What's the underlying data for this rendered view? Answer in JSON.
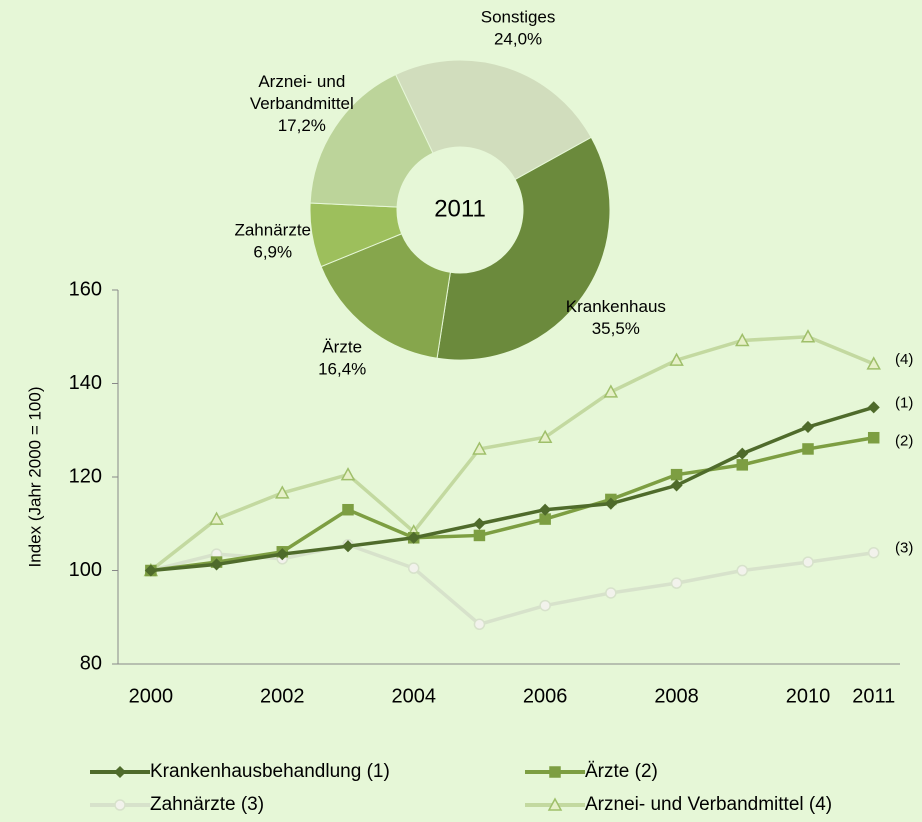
{
  "chart_data": [
    {
      "type": "line",
      "y_label": "Index (Jahr 2000 = 100)",
      "x": [
        2000,
        2001,
        2002,
        2003,
        2004,
        2005,
        2006,
        2007,
        2008,
        2009,
        2010,
        2011
      ],
      "xlim": [
        1999.5,
        2011.4
      ],
      "xticks": [
        2000,
        2002,
        2004,
        2006,
        2008,
        2010,
        2011
      ],
      "ylim": [
        80,
        160
      ],
      "yticks": [
        80,
        100,
        120,
        140,
        160
      ],
      "series": [
        {
          "name": "Krankenhausbehandlung (1)",
          "label": "(1)",
          "color": "#4f6b2b",
          "marker": "diamond",
          "values": [
            100,
            101.3,
            103.5,
            105.2,
            107,
            110,
            113,
            114.3,
            118.2,
            125,
            130.7,
            134.9
          ]
        },
        {
          "name": "Ärzte (2)",
          "label": "(2)",
          "color": "#7d9e42",
          "marker": "square",
          "values": [
            100,
            101.8,
            104,
            113,
            107,
            107.5,
            111,
            115.2,
            120.5,
            122.6,
            126,
            128.4
          ]
        },
        {
          "name": "Zahnärzte (3)",
          "label": "(3)",
          "color": "#d7e2cb",
          "marker": "circle",
          "values": [
            100,
            103.5,
            102.5,
            105.5,
            100.5,
            88.5,
            92.5,
            95.2,
            97.3,
            100,
            101.8,
            103.8
          ]
        },
        {
          "name": "Arznei- und Verbandmittel (4)",
          "label": "(4)",
          "color": "#c3d9a0",
          "marker": "triangle",
          "values": [
            100,
            111,
            116.6,
            120.5,
            108.3,
            126,
            128.5,
            138.2,
            145,
            149.2,
            150,
            144.2
          ]
        }
      ]
    },
    {
      "type": "pie",
      "center_label": "2011",
      "categories": [
        [
          "Krankenhaus"
        ],
        [
          "Ärzte"
        ],
        [
          "Zahnärzte"
        ],
        [
          "Arznei- und",
          "Verbandmittel"
        ],
        [
          "Sonstiges"
        ]
      ],
      "values": [
        35.5,
        16.4,
        6.9,
        17.2,
        24.0
      ],
      "value_labels": [
        "35,5%",
        "16,4%",
        "6,9%",
        "17,2%",
        "24,0%"
      ],
      "colors": [
        "#6b8a3c",
        "#86a64c",
        "#9dbf5c",
        "#bcd49a",
        "#d1ddbd"
      ]
    }
  ]
}
